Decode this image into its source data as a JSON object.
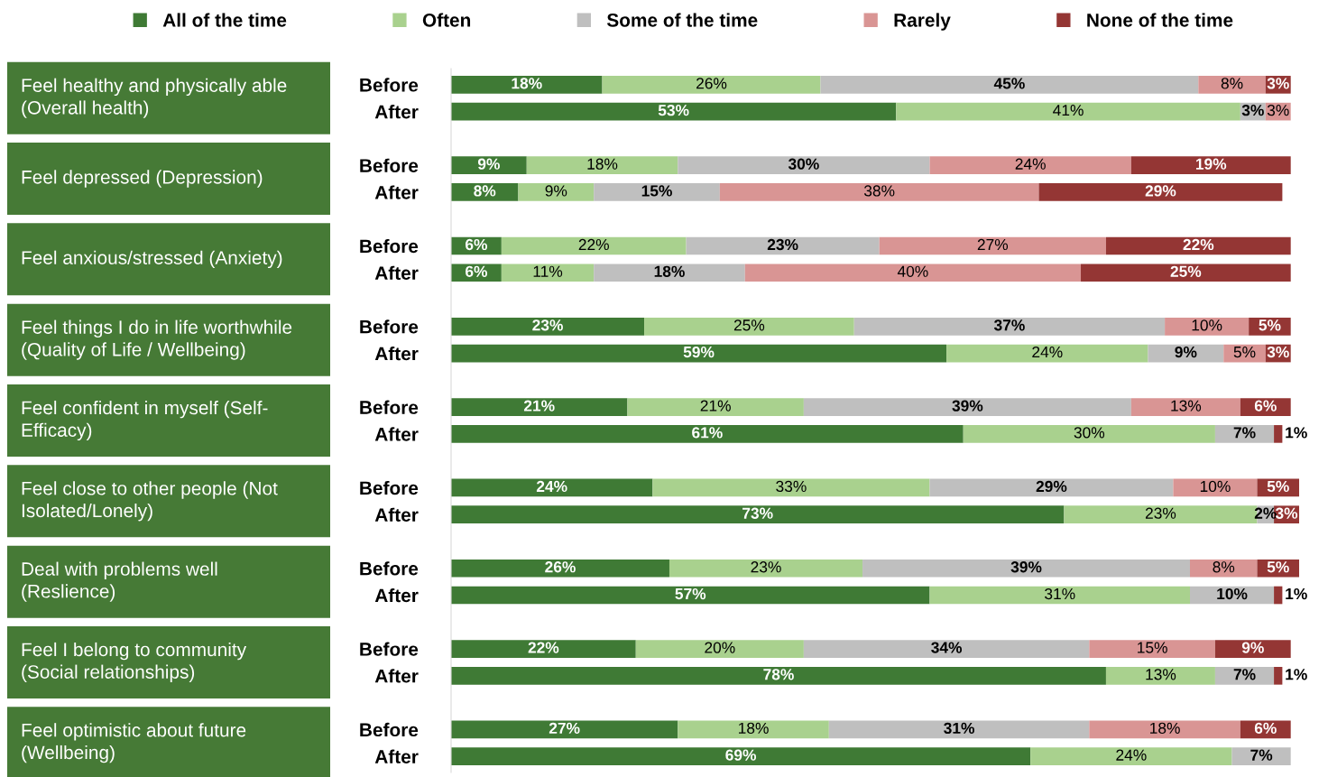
{
  "chart_data": {
    "type": "bar",
    "orientation": "horizontal",
    "stacked": true,
    "legend": "top",
    "grid": false,
    "categories": [
      "Before",
      "After",
      "Before",
      "After",
      "Before",
      "After",
      "Before",
      "After",
      "Before",
      "After",
      "Before",
      "After",
      "Before",
      "After",
      "Before",
      "After",
      "Before",
      "After"
    ],
    "annotations": [
      "Feel healthy and physically able\n(Overall health)",
      "Feel depressed (Depression)",
      "Feel anxious/stressed (Anxiety)",
      "Feel things I do in life worthwhile\n(Quality of Life / Wellbeing)",
      "Feel confident in myself (Self-\nEfficacy)",
      "Feel close to other people (Not\nIsolated/Lonely)",
      "Deal with problems well\n(Reslience)",
      "Feel I belong to community\n(Social relationships)",
      "Feel optimistic about future\n(Wellbeing)"
    ],
    "series": [
      {
        "name": "All of the time",
        "color": "#3f7a35",
        "values": [
          18,
          53,
          9,
          8,
          6,
          6,
          23,
          59,
          21,
          61,
          24,
          73,
          26,
          57,
          22,
          78,
          27,
          69
        ],
        "value_labels": [
          "18%",
          "53%",
          "9%",
          "8%",
          "6%",
          "6%",
          "23%",
          "59%",
          "21%",
          "61%",
          "24%",
          "73%",
          "26%",
          "57%",
          "22%",
          "78%",
          "27%",
          "69%"
        ]
      },
      {
        "name": "Often",
        "color": "#a9d18e",
        "values": [
          26,
          41,
          18,
          9,
          22,
          11,
          25,
          24,
          21,
          30,
          33,
          23,
          23,
          31,
          20,
          13,
          18,
          24
        ],
        "value_labels": [
          "26%",
          "41%",
          "18%",
          "9%",
          "22%",
          "11%",
          "25%",
          "24%",
          "21%",
          "30%",
          "33%",
          "23%",
          "23%",
          "31%",
          "20%",
          "13%",
          "18%",
          "24%"
        ]
      },
      {
        "name": "Some of the time",
        "color": "#bfbfbf",
        "values": [
          45,
          3,
          30,
          15,
          23,
          18,
          37,
          9,
          39,
          7,
          29,
          2,
          39,
          10,
          34,
          7,
          31,
          7
        ],
        "value_labels": [
          "45%",
          "3%",
          "30%",
          "15%",
          "23%",
          "18%",
          "37%",
          "9%",
          "39%",
          "7%",
          "29%",
          "2%",
          "39%",
          "10%",
          "34%",
          "7%",
          "31%",
          "7%"
        ]
      },
      {
        "name": "Rarely",
        "color": "#d99594",
        "values": [
          8,
          3,
          24,
          38,
          27,
          40,
          10,
          5,
          13,
          null,
          10,
          null,
          8,
          null,
          15,
          null,
          18,
          null
        ],
        "value_labels": [
          "8%",
          "3%",
          "24%",
          "38%",
          "27%",
          "40%",
          "10%",
          "5%",
          "13%",
          null,
          "10%",
          null,
          "8%",
          null,
          "15%",
          null,
          "18%",
          null
        ]
      },
      {
        "name": "None of the time",
        "color": "#943634",
        "values": [
          3,
          null,
          19,
          29,
          22,
          25,
          5,
          3,
          6,
          1,
          5,
          3,
          5,
          1,
          9,
          1,
          6,
          null
        ],
        "value_labels": [
          "3%",
          null,
          "19%",
          "29%",
          "22%",
          "25%",
          "5%",
          "3%",
          "6%",
          "1%",
          "5%",
          "3%",
          "5%",
          "1%",
          "9%",
          "1%",
          "6%",
          null
        ]
      }
    ]
  }
}
